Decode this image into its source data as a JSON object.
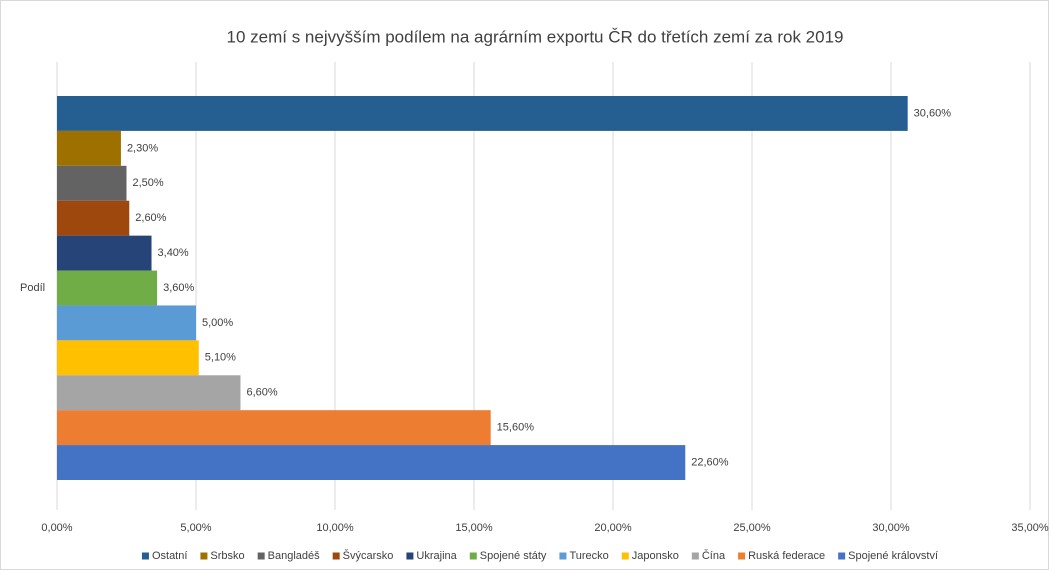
{
  "chart_data": {
    "type": "bar",
    "orientation": "horizontal",
    "title": "10 zemí s nejvyšším podílem na agrárním exportu ČR do třetích zemí za rok 2019",
    "categories": [
      "Podíl"
    ],
    "series": [
      {
        "name": "Ostatní",
        "color": "#255e91",
        "values": [
          30.6
        ],
        "value_labels": [
          "30,60%"
        ]
      },
      {
        "name": "Srbsko",
        "color": "#9e7000",
        "values": [
          2.3
        ],
        "value_labels": [
          "2,30%"
        ]
      },
      {
        "name": "Bangladéš",
        "color": "#636363",
        "values": [
          2.5
        ],
        "value_labels": [
          "2,50%"
        ]
      },
      {
        "name": "Švýcarsko",
        "color": "#9e480e",
        "values": [
          2.6
        ],
        "value_labels": [
          "2,60%"
        ]
      },
      {
        "name": "Ukrajina",
        "color": "#264478",
        "values": [
          3.4
        ],
        "value_labels": [
          "3,40%"
        ]
      },
      {
        "name": "Spojené státy",
        "color": "#70ad47",
        "values": [
          3.6
        ],
        "value_labels": [
          "3,60%"
        ]
      },
      {
        "name": "Turecko",
        "color": "#5b9bd5",
        "values": [
          5.0
        ],
        "value_labels": [
          "5,00%"
        ]
      },
      {
        "name": "Japonsko",
        "color": "#ffc000",
        "values": [
          5.1
        ],
        "value_labels": [
          "5,10%"
        ]
      },
      {
        "name": "Čína",
        "color": "#a5a5a5",
        "values": [
          6.6
        ],
        "value_labels": [
          "6,60%"
        ]
      },
      {
        "name": "Ruská federace",
        "color": "#ed7d31",
        "values": [
          15.6
        ],
        "value_labels": [
          "15,60%"
        ]
      },
      {
        "name": "Spojené království",
        "color": "#4472c4",
        "values": [
          22.6
        ],
        "value_labels": [
          "22,60%"
        ]
      }
    ],
    "xlim": [
      0,
      35
    ],
    "xticks": [
      {
        "value": 0,
        "label": "0,00%"
      },
      {
        "value": 5,
        "label": "5,00%"
      },
      {
        "value": 10,
        "label": "10,00%"
      },
      {
        "value": 15,
        "label": "15,00%"
      },
      {
        "value": 20,
        "label": "20,00%"
      },
      {
        "value": 25,
        "label": "25,00%"
      },
      {
        "value": 30,
        "label": "30,00%"
      },
      {
        "value": 35,
        "label": "35,00%"
      }
    ],
    "grid": true,
    "legend": "bottom"
  }
}
